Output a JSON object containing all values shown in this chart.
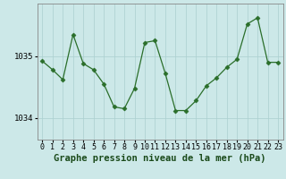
{
  "x": [
    0,
    1,
    2,
    3,
    4,
    5,
    6,
    7,
    8,
    9,
    10,
    11,
    12,
    13,
    14,
    15,
    16,
    17,
    18,
    19,
    20,
    21,
    22,
    23
  ],
  "y": [
    1034.92,
    1034.78,
    1034.62,
    1035.35,
    1034.88,
    1034.78,
    1034.55,
    1034.18,
    1034.15,
    1034.48,
    1035.22,
    1035.25,
    1034.72,
    1034.12,
    1034.12,
    1034.28,
    1034.52,
    1034.65,
    1034.82,
    1034.95,
    1035.52,
    1035.62,
    1034.9,
    1034.9
  ],
  "y_ticks": [
    1034,
    1035
  ],
  "x_ticks": [
    0,
    1,
    2,
    3,
    4,
    5,
    6,
    7,
    8,
    9,
    10,
    11,
    12,
    13,
    14,
    15,
    16,
    17,
    18,
    19,
    20,
    21,
    22,
    23
  ],
  "ylim": [
    1033.65,
    1035.85
  ],
  "xlim": [
    -0.5,
    23.5
  ],
  "line_color": "#2a6e2a",
  "marker": "D",
  "marker_size": 2.5,
  "bg_color": "#cce8e8",
  "grid_color": "#aacfcf",
  "xlabel": "Graphe pression niveau de la mer (hPa)",
  "xlabel_fontsize": 7.5,
  "tick_fontsize": 6,
  "ytick_fontsize": 6.5,
  "figsize": [
    3.2,
    2.0
  ],
  "dpi": 100
}
